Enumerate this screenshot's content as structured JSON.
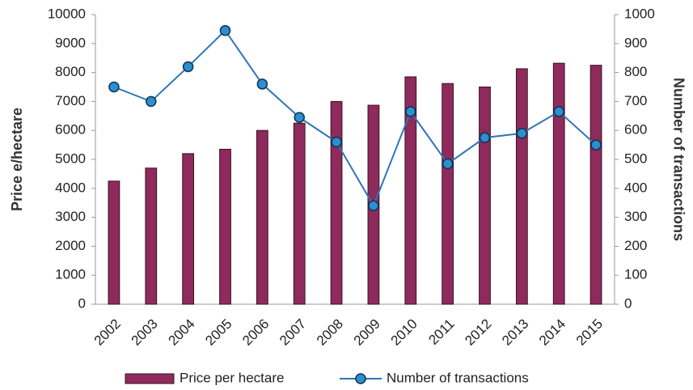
{
  "chart_data": {
    "type": "bar-line",
    "categories": [
      "2002",
      "2003",
      "2004",
      "2005",
      "2006",
      "2007",
      "2008",
      "2009",
      "2010",
      "2011",
      "2012",
      "2013",
      "2014",
      "2015"
    ],
    "series": [
      {
        "name": "Price per hectare",
        "type": "bar",
        "color": "#8e2b5c",
        "values": [
          4250,
          4700,
          5200,
          5350,
          6000,
          6250,
          7000,
          6870,
          7850,
          7620,
          7500,
          8130,
          8320,
          8250
        ]
      },
      {
        "name": "Number of transactions",
        "type": "line",
        "axis": "y2",
        "color": "#2e75b6",
        "marker_color": "#2b8fd0",
        "values": [
          750,
          700,
          820,
          945,
          760,
          645,
          560,
          340,
          665,
          485,
          575,
          590,
          665,
          550
        ]
      }
    ],
    "ylabel": "Price e/hectare",
    "y2label": "Number of transactions",
    "ylim": [
      0,
      10000
    ],
    "yticks": [
      0,
      1000,
      2000,
      3000,
      4000,
      5000,
      6000,
      7000,
      8000,
      9000,
      10000
    ],
    "y2lim": [
      0,
      1000
    ],
    "y2ticks": [
      0,
      100,
      200,
      300,
      400,
      500,
      600,
      700,
      800,
      900,
      1000
    ],
    "legend": "bottom"
  }
}
